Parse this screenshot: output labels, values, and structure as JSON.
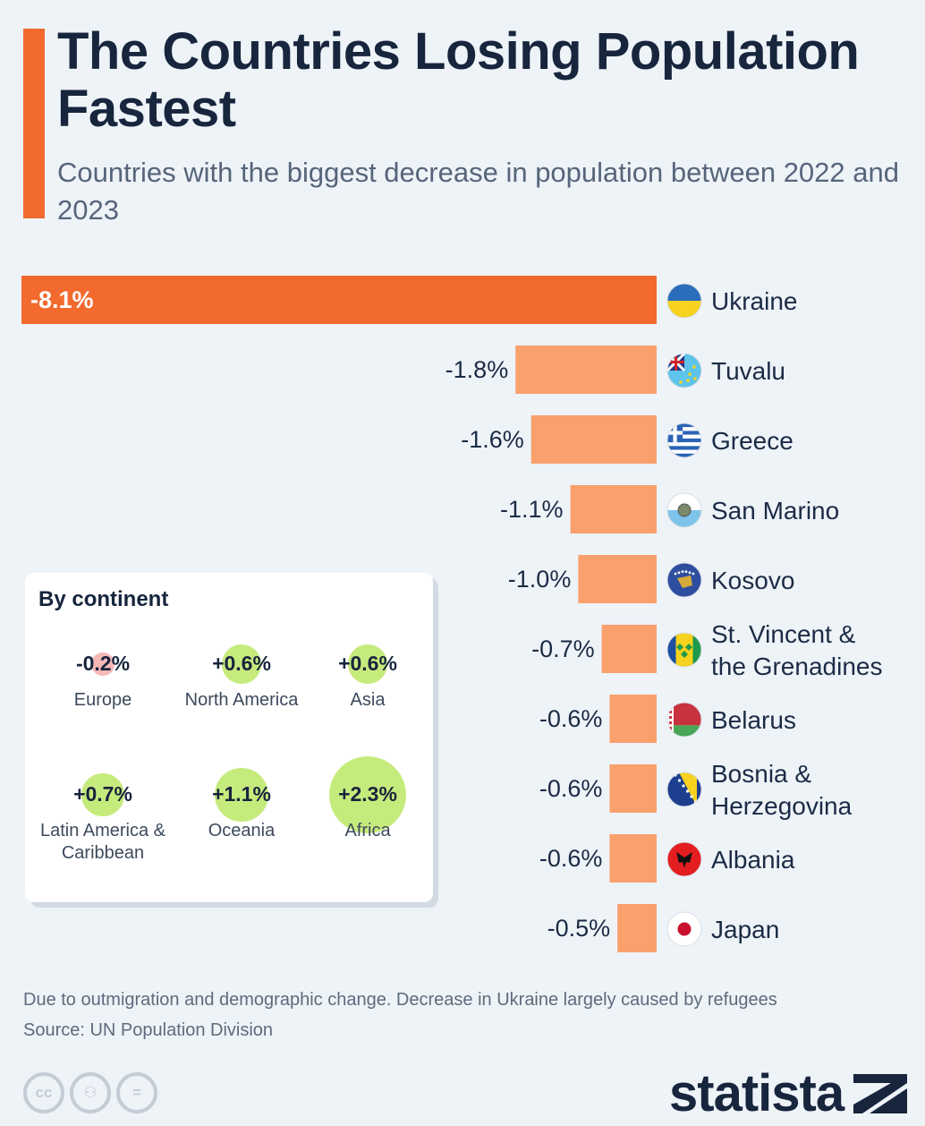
{
  "title": "The Countries Losing Population Fastest",
  "subtitle": "Countries with the biggest decrease in population between 2022 and 2023",
  "chart_data": {
    "type": "bar",
    "orientation": "horizontal",
    "categories": [
      "Ukraine",
      "Tuvalu",
      "Greece",
      "San Marino",
      "Kosovo",
      "St. Vincent & the Grenadines",
      "Belarus",
      "Bosnia & Herzegovina",
      "Albania",
      "Japan"
    ],
    "category_lines": [
      [
        "Ukraine"
      ],
      [
        "Tuvalu"
      ],
      [
        "Greece"
      ],
      [
        "San Marino"
      ],
      [
        "Kosovo"
      ],
      [
        "St. Vincent &",
        "the Grenadines"
      ],
      [
        "Belarus"
      ],
      [
        "Bosnia &",
        "Herzegovina"
      ],
      [
        "Albania"
      ],
      [
        "Japan"
      ]
    ],
    "values": [
      -8.1,
      -1.8,
      -1.6,
      -1.1,
      -1.0,
      -0.7,
      -0.6,
      -0.6,
      -0.6,
      -0.5
    ],
    "labels": [
      "-8.1%",
      "-1.8%",
      "-1.6%",
      "-1.1%",
      "-1.0%",
      "-0.7%",
      "-0.6%",
      "-0.6%",
      "-0.6%",
      "-0.5%"
    ],
    "unit": "%",
    "xlim": [
      -8.1,
      0
    ],
    "highlight_color": "#f26a2e",
    "bar_color": "#f9a06d",
    "flags": [
      "ukraine-flag-icon",
      "tuvalu-flag-icon",
      "greece-flag-icon",
      "san-marino-flag-icon",
      "kosovo-flag-icon",
      "st-vincent-flag-icon",
      "belarus-flag-icon",
      "bosnia-flag-icon",
      "albania-flag-icon",
      "japan-flag-icon"
    ]
  },
  "continents": {
    "title": "By continent",
    "items": [
      {
        "name": "Europe",
        "value": -0.2,
        "label": "-0.2%"
      },
      {
        "name": "North America",
        "value": 0.6,
        "label": "+0.6%"
      },
      {
        "name": "Asia",
        "value": 0.6,
        "label": "+0.6%"
      },
      {
        "name": "Latin America & Caribbean",
        "value": 0.7,
        "label": "+0.7%"
      },
      {
        "name": "Oceania",
        "value": 1.1,
        "label": "+1.1%"
      },
      {
        "name": "Africa",
        "value": 2.3,
        "label": "+2.3%"
      }
    ],
    "positive_color": "#c6eb7d",
    "negative_color": "#f7b8b8"
  },
  "footer": {
    "note": "Due to outmigration and demographic change. Decrease in Ukraine largely caused by refugees",
    "source": "Source: UN Population Division",
    "brand": "statista",
    "license_icons": [
      "cc-icon",
      "attribution-icon",
      "no-derivatives-icon"
    ]
  }
}
